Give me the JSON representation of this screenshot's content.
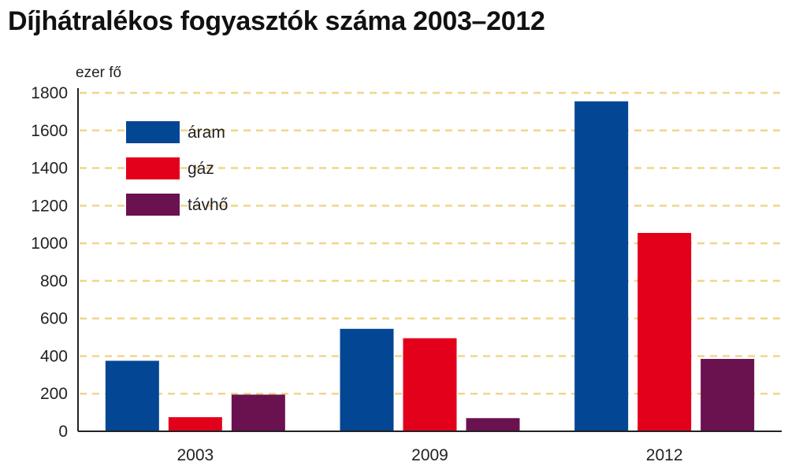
{
  "chart_data": {
    "type": "bar",
    "title": "Díjhátralékos fogyasztók száma 2003–2012",
    "ylabel": "ezer fő",
    "xlabel": "",
    "categories": [
      "2003",
      "2009",
      "2012"
    ],
    "series": [
      {
        "name": "áram",
        "color": "#034694",
        "values": [
          375,
          545,
          1755
        ]
      },
      {
        "name": "gáz",
        "color": "#e3001b",
        "values": [
          75,
          495,
          1055
        ]
      },
      {
        "name": "távhő",
        "color": "#6a1150",
        "values": [
          195,
          70,
          385
        ]
      }
    ],
    "ylim": [
      0,
      1800
    ],
    "yticks": [
      0,
      200,
      400,
      600,
      800,
      1000,
      1200,
      1400,
      1600,
      1800
    ],
    "grid": true,
    "grid_style": "dashed",
    "grid_color": "#f1d58a",
    "legend_placement": "top-left"
  }
}
